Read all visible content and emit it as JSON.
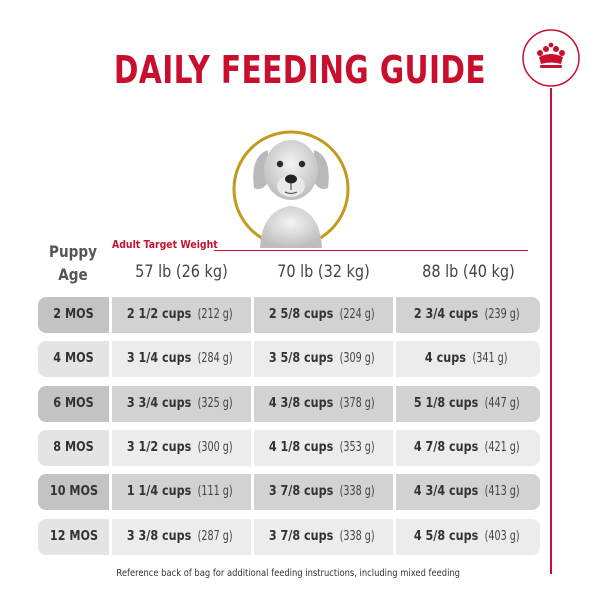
{
  "title": "DAILY FEEDING GUIDE",
  "colors": {
    "brand_red": "#c8102e",
    "photo_ring_gold": "#c49a1e",
    "row_dark": "#d2d2d2",
    "row_light": "#ececec",
    "age_dark": "#c3c3c3",
    "age_light": "#e4e4e4"
  },
  "logo": {
    "icon": "crown-icon"
  },
  "photo": {
    "icon": "puppy-photo"
  },
  "table": {
    "age_header_line1": "Puppy",
    "age_header_line2": "Age",
    "target_label": "Adult Target Weight",
    "columns": [
      "57 lb (26 kg)",
      "70 lb (32 kg)",
      "88 lb (40 kg)"
    ],
    "rows": [
      {
        "age": "2 MOS",
        "cells": [
          {
            "cups": "2 1/2 cups",
            "grams": "(212 g)"
          },
          {
            "cups": "2 5/8 cups",
            "grams": "(224 g)"
          },
          {
            "cups": "2 3/4 cups",
            "grams": "(239 g)"
          }
        ]
      },
      {
        "age": "4 MOS",
        "cells": [
          {
            "cups": "3 1/4 cups",
            "grams": "(284 g)"
          },
          {
            "cups": "3 5/8 cups",
            "grams": "(309 g)"
          },
          {
            "cups": "4 cups",
            "grams": "(341 g)"
          }
        ]
      },
      {
        "age": "6 MOS",
        "cells": [
          {
            "cups": "3 3/4 cups",
            "grams": "(325 g)"
          },
          {
            "cups": "4 3/8 cups",
            "grams": "(378 g)"
          },
          {
            "cups": "5 1/8 cups",
            "grams": "(447 g)"
          }
        ]
      },
      {
        "age": "8 MOS",
        "cells": [
          {
            "cups": "3 1/2 cups",
            "grams": "(300 g)"
          },
          {
            "cups": "4 1/8 cups",
            "grams": "(353 g)"
          },
          {
            "cups": "4 7/8 cups",
            "grams": "(421 g)"
          }
        ]
      },
      {
        "age": "10 MOS",
        "cells": [
          {
            "cups": "1 1/4 cups",
            "grams": "(111 g)"
          },
          {
            "cups": "3 7/8 cups",
            "grams": "(338 g)"
          },
          {
            "cups": "4 3/4 cups",
            "grams": "(413 g)"
          }
        ]
      },
      {
        "age": "12 MOS",
        "cells": [
          {
            "cups": "3 3/8 cups",
            "grams": "(287 g)"
          },
          {
            "cups": "3 7/8 cups",
            "grams": "(338 g)"
          },
          {
            "cups": "4 5/8 cups",
            "grams": "(403 g)"
          }
        ]
      }
    ]
  },
  "footnote": "Reference back of bag for additional feeding instructions, including mixed feeding"
}
